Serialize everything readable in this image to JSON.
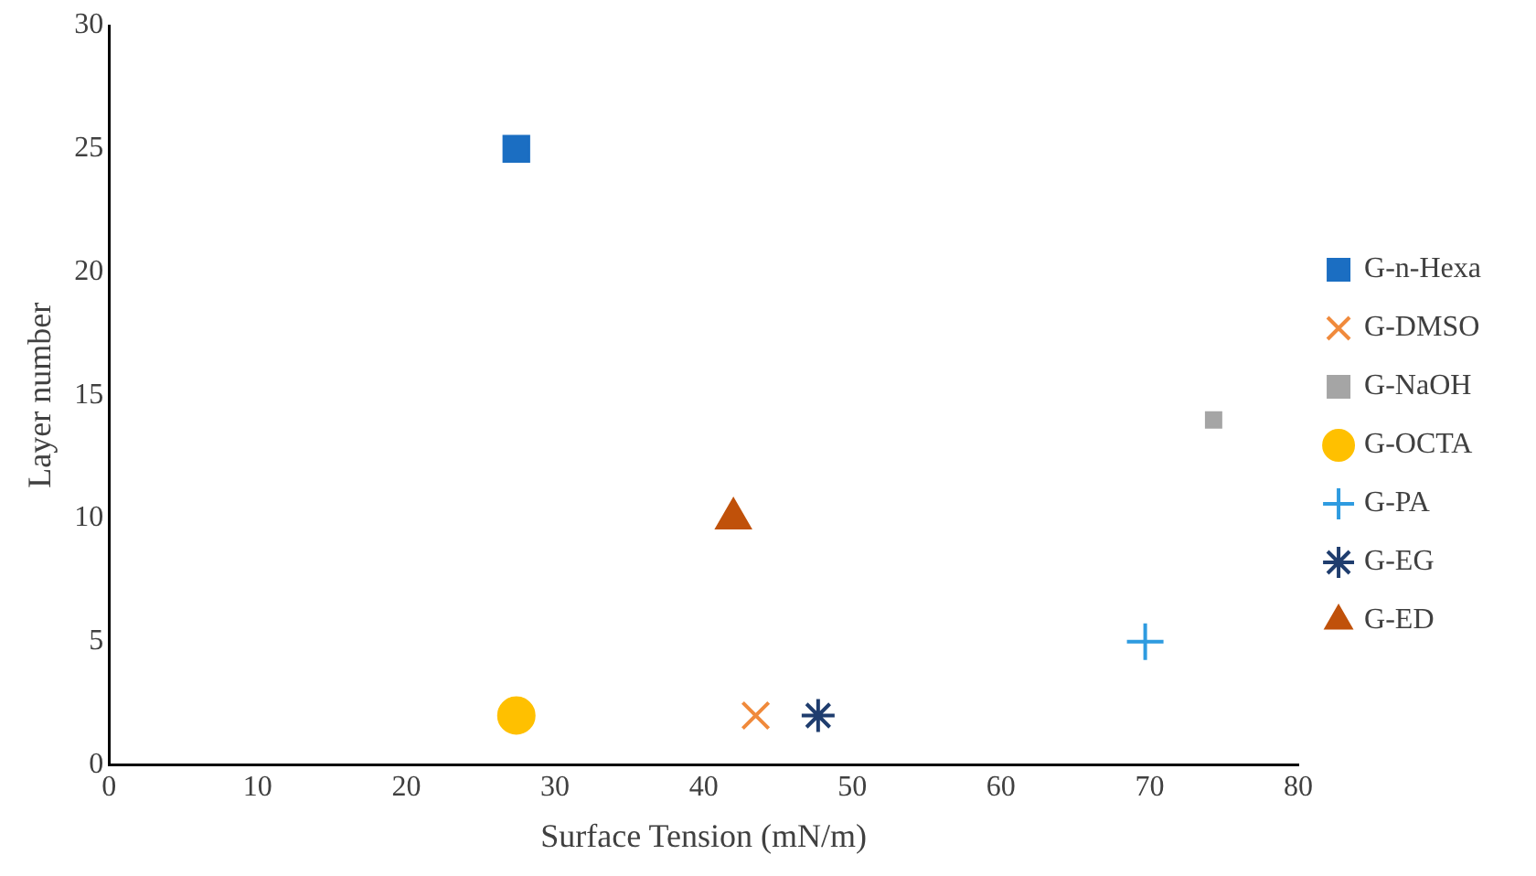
{
  "chart_data": {
    "type": "scatter",
    "xlabel": "Surface Tension (mN/m)",
    "ylabel": "Layer number",
    "xlim": [
      0,
      80
    ],
    "xticks": [
      0,
      10,
      20,
      30,
      40,
      50,
      60,
      70,
      80
    ],
    "ylim": [
      0,
      30
    ],
    "yticks": [
      0,
      5,
      10,
      15,
      20,
      25,
      30
    ],
    "grid": false,
    "legend": "right",
    "series": [
      {
        "name": "G-n-Hexa",
        "color": "#1b6ec2",
        "marker": "square",
        "x": [
          27.4
        ],
        "values": [
          25
        ]
      },
      {
        "name": "G-DMSO",
        "color": "#f08a3c",
        "marker": "x",
        "x": [
          43.5
        ],
        "values": [
          2
        ]
      },
      {
        "name": "G-NaOH",
        "color": "#a5a5a5",
        "marker": "square",
        "x": [
          74.3
        ],
        "values": [
          14
        ]
      },
      {
        "name": "G-OCTA",
        "color": "#ffc000",
        "marker": "circle",
        "x": [
          27.4
        ],
        "values": [
          2
        ]
      },
      {
        "name": "G-PA",
        "color": "#2e9be0",
        "marker": "plus",
        "x": [
          69.7
        ],
        "values": [
          5
        ]
      },
      {
        "name": "G-EG",
        "color": "#1f3d6e",
        "marker": "cross",
        "x": [
          47.7
        ],
        "values": [
          2
        ]
      },
      {
        "name": "G-ED",
        "color": "#c0510a",
        "marker": "triangle",
        "x": [
          42
        ],
        "values": [
          10
        ]
      }
    ]
  }
}
